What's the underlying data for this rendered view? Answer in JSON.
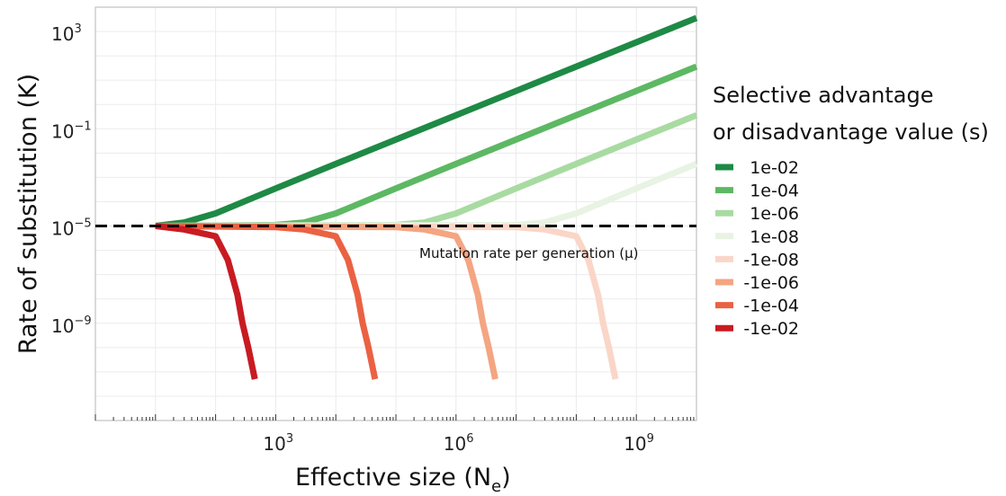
{
  "chart_data": {
    "type": "line",
    "xlabel": "Effective size (N",
    "xlabel_sub": "e",
    "xlabel_end": ")",
    "ylabel": "Rate of substitution (K)",
    "x_scale": "log",
    "y_scale": "log",
    "xlim": [
      1,
      10000000000.0
    ],
    "ylim": [
      1e-13,
      10000.0
    ],
    "x_ticks": [
      {
        "base": "10",
        "exp": "3",
        "value": 1000
      },
      {
        "base": "10",
        "exp": "6",
        "value": 1000000
      },
      {
        "base": "10",
        "exp": "9",
        "value": 1000000000
      }
    ],
    "y_ticks": [
      {
        "base": "10",
        "exp": "3",
        "value": 1000
      },
      {
        "base": "10",
        "exp": "−1",
        "value": 0.1
      },
      {
        "base": "10",
        "exp": "−5",
        "value": 1e-05
      },
      {
        "base": "10",
        "exp": "−9",
        "value": 1e-09
      }
    ],
    "grid": true,
    "legend": {
      "title_line1": "Selective advantage",
      "title_line2": "or disadvantage value (s)",
      "placement": "right"
    },
    "reference_line": {
      "y": 1e-05,
      "style": "dashed",
      "label": "Mutation rate per generation (μ)"
    },
    "series": [
      {
        "name": "1e-02",
        "s": 0.01,
        "color": "#1e8a45",
        "x": [
          10,
          30,
          100,
          1000,
          10000,
          1000000.0,
          100000000.0,
          10000000000.0
        ],
        "y": [
          1e-05,
          1.4e-05,
          3.3e-05,
          0.00035,
          0.0036,
          0.36,
          36,
          3600
        ]
      },
      {
        "name": "1e-04",
        "s": 0.0001,
        "color": "#5db863",
        "x": [
          10,
          1000,
          3000,
          10000,
          100000.0,
          1000000.0,
          100000000.0,
          10000000000.0
        ],
        "y": [
          1e-05,
          1.1e-05,
          1.4e-05,
          3.3e-05,
          0.00035,
          0.0036,
          0.36,
          36
        ]
      },
      {
        "name": "1e-06",
        "s": 1e-06,
        "color": "#a8dba1",
        "x": [
          10,
          100000.0,
          300000.0,
          1000000.0,
          10000000.0,
          100000000.0,
          10000000000.0
        ],
        "y": [
          1e-05,
          1.1e-05,
          1.4e-05,
          3.3e-05,
          0.00035,
          0.0036,
          0.36
        ]
      },
      {
        "name": "1e-08",
        "s": 1e-08,
        "color": "#e8f3e3",
        "x": [
          10,
          10000000.0,
          30000000.0,
          100000000.0,
          1000000000.0,
          10000000000.0
        ],
        "y": [
          1e-05,
          1.1e-05,
          1.4e-05,
          3.3e-05,
          0.00035,
          0.0036
        ]
      },
      {
        "name": "-1e-08",
        "s": -1e-08,
        "color": "#fad6c8",
        "x": [
          10,
          10000000.0,
          30000000.0,
          100000000.0,
          160000000.0,
          230000000.0,
          280000000.0,
          350000000.0,
          450000000.0
        ],
        "y": [
          1e-05,
          9e-06,
          7.2e-06,
          3.8e-06,
          4e-07,
          1.5e-08,
          1e-09,
          1e-10,
          5e-12
        ]
      },
      {
        "name": "-1e-06",
        "s": -1e-06,
        "color": "#f4a582",
        "x": [
          10,
          100000.0,
          300000.0,
          1000000.0,
          1600000.0,
          2300000.0,
          2800000.0,
          3500000.0,
          4500000.0
        ],
        "y": [
          1e-05,
          9e-06,
          7.2e-06,
          3.8e-06,
          4e-07,
          1.5e-08,
          1e-09,
          1e-10,
          5e-12
        ]
      },
      {
        "name": "-1e-04",
        "s": -0.0001,
        "color": "#ea6243",
        "x": [
          10,
          1000,
          3000,
          10000,
          16000,
          23000,
          28000,
          35000,
          45000
        ],
        "y": [
          1e-05,
          9e-06,
          7.2e-06,
          3.8e-06,
          4e-07,
          1.5e-08,
          1e-09,
          1e-10,
          5e-12
        ]
      },
      {
        "name": "-1e-02",
        "s": -0.01,
        "color": "#c81b22",
        "x": [
          10,
          30,
          100,
          160,
          230,
          280,
          350,
          450
        ],
        "y": [
          1e-05,
          7.2e-06,
          3.8e-06,
          4e-07,
          1.5e-08,
          1e-09,
          1e-10,
          5e-12
        ]
      }
    ]
  }
}
